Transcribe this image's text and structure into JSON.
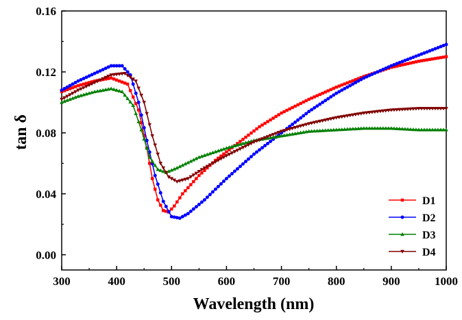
{
  "chart_data": {
    "type": "line",
    "title": "",
    "xlabel": "Wavelength (nm)",
    "ylabel": "tan δ",
    "xlim": [
      300,
      1000
    ],
    "ylim": [
      -0.01,
      0.16
    ],
    "xticks": [
      300,
      400,
      500,
      600,
      700,
      800,
      900,
      1000
    ],
    "yticks": [
      0.0,
      0.04,
      0.08,
      0.12,
      0.16
    ],
    "ytick_labels": [
      "0.00",
      "0.04",
      "0.08",
      "0.12",
      "0.16"
    ],
    "grid": false,
    "legend_position": "bottom-right",
    "series": [
      {
        "name": "D1",
        "color": "#ff0000",
        "marker": "square",
        "points": [
          [
            300,
            0.107
          ],
          [
            330,
            0.111
          ],
          [
            360,
            0.114
          ],
          [
            390,
            0.116
          ],
          [
            420,
            0.112
          ],
          [
            440,
            0.095
          ],
          [
            455,
            0.07
          ],
          [
            465,
            0.05
          ],
          [
            475,
            0.036
          ],
          [
            485,
            0.029
          ],
          [
            495,
            0.028
          ],
          [
            505,
            0.032
          ],
          [
            520,
            0.04
          ],
          [
            550,
            0.052
          ],
          [
            580,
            0.062
          ],
          [
            620,
            0.073
          ],
          [
            660,
            0.084
          ],
          [
            700,
            0.093
          ],
          [
            750,
            0.102
          ],
          [
            800,
            0.11
          ],
          [
            850,
            0.117
          ],
          [
            900,
            0.123
          ],
          [
            950,
            0.127
          ],
          [
            1000,
            0.13
          ]
        ]
      },
      {
        "name": "D2",
        "color": "#0000ff",
        "marker": "circle",
        "points": [
          [
            300,
            0.108
          ],
          [
            330,
            0.114
          ],
          [
            360,
            0.119
          ],
          [
            390,
            0.124
          ],
          [
            410,
            0.124
          ],
          [
            425,
            0.118
          ],
          [
            440,
            0.1
          ],
          [
            455,
            0.075
          ],
          [
            470,
            0.052
          ],
          [
            485,
            0.035
          ],
          [
            500,
            0.025
          ],
          [
            515,
            0.024
          ],
          [
            530,
            0.027
          ],
          [
            560,
            0.036
          ],
          [
            600,
            0.05
          ],
          [
            650,
            0.066
          ],
          [
            700,
            0.08
          ],
          [
            750,
            0.094
          ],
          [
            800,
            0.106
          ],
          [
            850,
            0.116
          ],
          [
            900,
            0.124
          ],
          [
            950,
            0.131
          ],
          [
            1000,
            0.138
          ]
        ]
      },
      {
        "name": "D3",
        "color": "#008000",
        "marker": "triangle-up",
        "points": [
          [
            300,
            0.1
          ],
          [
            330,
            0.104
          ],
          [
            360,
            0.107
          ],
          [
            390,
            0.109
          ],
          [
            410,
            0.107
          ],
          [
            430,
            0.098
          ],
          [
            445,
            0.082
          ],
          [
            460,
            0.064
          ],
          [
            475,
            0.056
          ],
          [
            490,
            0.054
          ],
          [
            510,
            0.057
          ],
          [
            550,
            0.064
          ],
          [
            600,
            0.07
          ],
          [
            650,
            0.075
          ],
          [
            700,
            0.078
          ],
          [
            750,
            0.081
          ],
          [
            800,
            0.082
          ],
          [
            850,
            0.083
          ],
          [
            900,
            0.083
          ],
          [
            950,
            0.082
          ],
          [
            1000,
            0.082
          ]
        ]
      },
      {
        "name": "D4",
        "color": "#800000",
        "marker": "triangle-down",
        "points": [
          [
            300,
            0.102
          ],
          [
            330,
            0.108
          ],
          [
            360,
            0.113
          ],
          [
            390,
            0.118
          ],
          [
            415,
            0.119
          ],
          [
            435,
            0.114
          ],
          [
            450,
            0.1
          ],
          [
            465,
            0.078
          ],
          [
            480,
            0.06
          ],
          [
            495,
            0.051
          ],
          [
            510,
            0.048
          ],
          [
            530,
            0.05
          ],
          [
            560,
            0.057
          ],
          [
            600,
            0.065
          ],
          [
            650,
            0.074
          ],
          [
            700,
            0.081
          ],
          [
            750,
            0.086
          ],
          [
            800,
            0.09
          ],
          [
            850,
            0.093
          ],
          [
            900,
            0.095
          ],
          [
            950,
            0.096
          ],
          [
            1000,
            0.096
          ]
        ]
      }
    ]
  }
}
